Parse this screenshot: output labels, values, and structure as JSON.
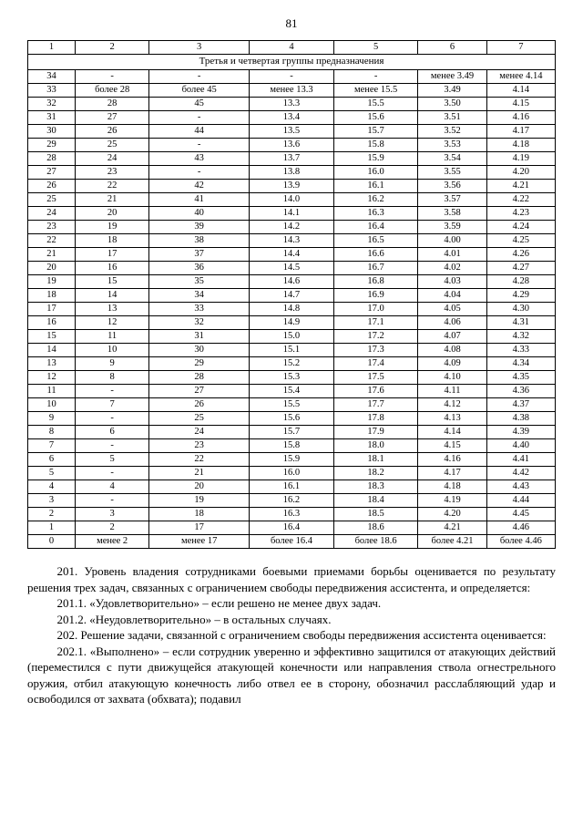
{
  "pageNumber": "81",
  "table": {
    "colWidths": [
      "9%",
      "14%",
      "19%",
      "16%",
      "16%",
      "13%",
      "13%"
    ],
    "header": [
      "1",
      "2",
      "3",
      "4",
      "5",
      "6",
      "7"
    ],
    "mergedTitle": "Третья и четвертая группы предназначения",
    "rows": [
      [
        "34",
        "-",
        "-",
        "-",
        "-",
        "менее 3.49",
        "менее 4.14"
      ],
      [
        "33",
        "более 28",
        "более 45",
        "менее 13.3",
        "менее 15.5",
        "3.49",
        "4.14"
      ],
      [
        "32",
        "28",
        "45",
        "13.3",
        "15.5",
        "3.50",
        "4.15"
      ],
      [
        "31",
        "27",
        "-",
        "13.4",
        "15.6",
        "3.51",
        "4.16"
      ],
      [
        "30",
        "26",
        "44",
        "13.5",
        "15.7",
        "3.52",
        "4.17"
      ],
      [
        "29",
        "25",
        "-",
        "13.6",
        "15.8",
        "3.53",
        "4.18"
      ],
      [
        "28",
        "24",
        "43",
        "13.7",
        "15.9",
        "3.54",
        "4.19"
      ],
      [
        "27",
        "23",
        "-",
        "13.8",
        "16.0",
        "3.55",
        "4.20"
      ],
      [
        "26",
        "22",
        "42",
        "13.9",
        "16.1",
        "3.56",
        "4.21"
      ],
      [
        "25",
        "21",
        "41",
        "14.0",
        "16.2",
        "3.57",
        "4.22"
      ],
      [
        "24",
        "20",
        "40",
        "14.1",
        "16.3",
        "3.58",
        "4.23"
      ],
      [
        "23",
        "19",
        "39",
        "14.2",
        "16.4",
        "3.59",
        "4.24"
      ],
      [
        "22",
        "18",
        "38",
        "14.3",
        "16.5",
        "4.00",
        "4.25"
      ],
      [
        "21",
        "17",
        "37",
        "14.4",
        "16.6",
        "4.01",
        "4.26"
      ],
      [
        "20",
        "16",
        "36",
        "14.5",
        "16.7",
        "4.02",
        "4.27"
      ],
      [
        "19",
        "15",
        "35",
        "14.6",
        "16.8",
        "4.03",
        "4.28"
      ],
      [
        "18",
        "14",
        "34",
        "14.7",
        "16.9",
        "4.04",
        "4.29"
      ],
      [
        "17",
        "13",
        "33",
        "14.8",
        "17.0",
        "4.05",
        "4.30"
      ],
      [
        "16",
        "12",
        "32",
        "14.9",
        "17.1",
        "4.06",
        "4.31"
      ],
      [
        "15",
        "11",
        "31",
        "15.0",
        "17.2",
        "4.07",
        "4.32"
      ],
      [
        "14",
        "10",
        "30",
        "15.1",
        "17.3",
        "4.08",
        "4.33"
      ],
      [
        "13",
        "9",
        "29",
        "15.2",
        "17.4",
        "4.09",
        "4.34"
      ],
      [
        "12",
        "8",
        "28",
        "15.3",
        "17.5",
        "4.10",
        "4.35"
      ],
      [
        "11",
        "-",
        "27",
        "15.4",
        "17.6",
        "4.11",
        "4.36"
      ],
      [
        "10",
        "7",
        "26",
        "15.5",
        "17.7",
        "4.12",
        "4.37"
      ],
      [
        "9",
        "-",
        "25",
        "15.6",
        "17.8",
        "4.13",
        "4.38"
      ],
      [
        "8",
        "6",
        "24",
        "15.7",
        "17.9",
        "4.14",
        "4.39"
      ],
      [
        "7",
        "-",
        "23",
        "15.8",
        "18.0",
        "4.15",
        "4.40"
      ],
      [
        "6",
        "5",
        "22",
        "15.9",
        "18.1",
        "4.16",
        "4.41"
      ],
      [
        "5",
        "-",
        "21",
        "16.0",
        "18.2",
        "4.17",
        "4.42"
      ],
      [
        "4",
        "4",
        "20",
        "16.1",
        "18.3",
        "4.18",
        "4.43"
      ],
      [
        "3",
        "-",
        "19",
        "16.2",
        "18.4",
        "4.19",
        "4.44"
      ],
      [
        "2",
        "3",
        "18",
        "16.3",
        "18.5",
        "4.20",
        "4.45"
      ],
      [
        "1",
        "2",
        "17",
        "16.4",
        "18.6",
        "4.21",
        "4.46"
      ],
      [
        "0",
        "менее 2",
        "менее 17",
        "более 16.4",
        "более 18.6",
        "более 4.21",
        "более 4.46"
      ]
    ]
  },
  "paragraphs": [
    "201. Уровень владения сотрудниками боевыми приемами борьбы оценивается по результату решения трех задач, связанных с ограничением свободы передвижения ассистента, и определяется:",
    "201.1. «Удовлетворительно» – если решено не менее двух задач.",
    "201.2. «Неудовлетворительно» – в остальных случаях.",
    "202. Решение задачи, связанной с ограничением свободы передвижения ассистента оценивается:",
    "202.1. «Выполнено» – если сотрудник уверенно и эффективно защитился от атакующих действий (переместился с пути движущейся атакующей конечности или направления ствола огнестрельного оружия, отбил атакующую конечность либо отвел ее в сторону, обозначил расслабляющий удар и освободился от захвата (обхвата); подавил"
  ]
}
